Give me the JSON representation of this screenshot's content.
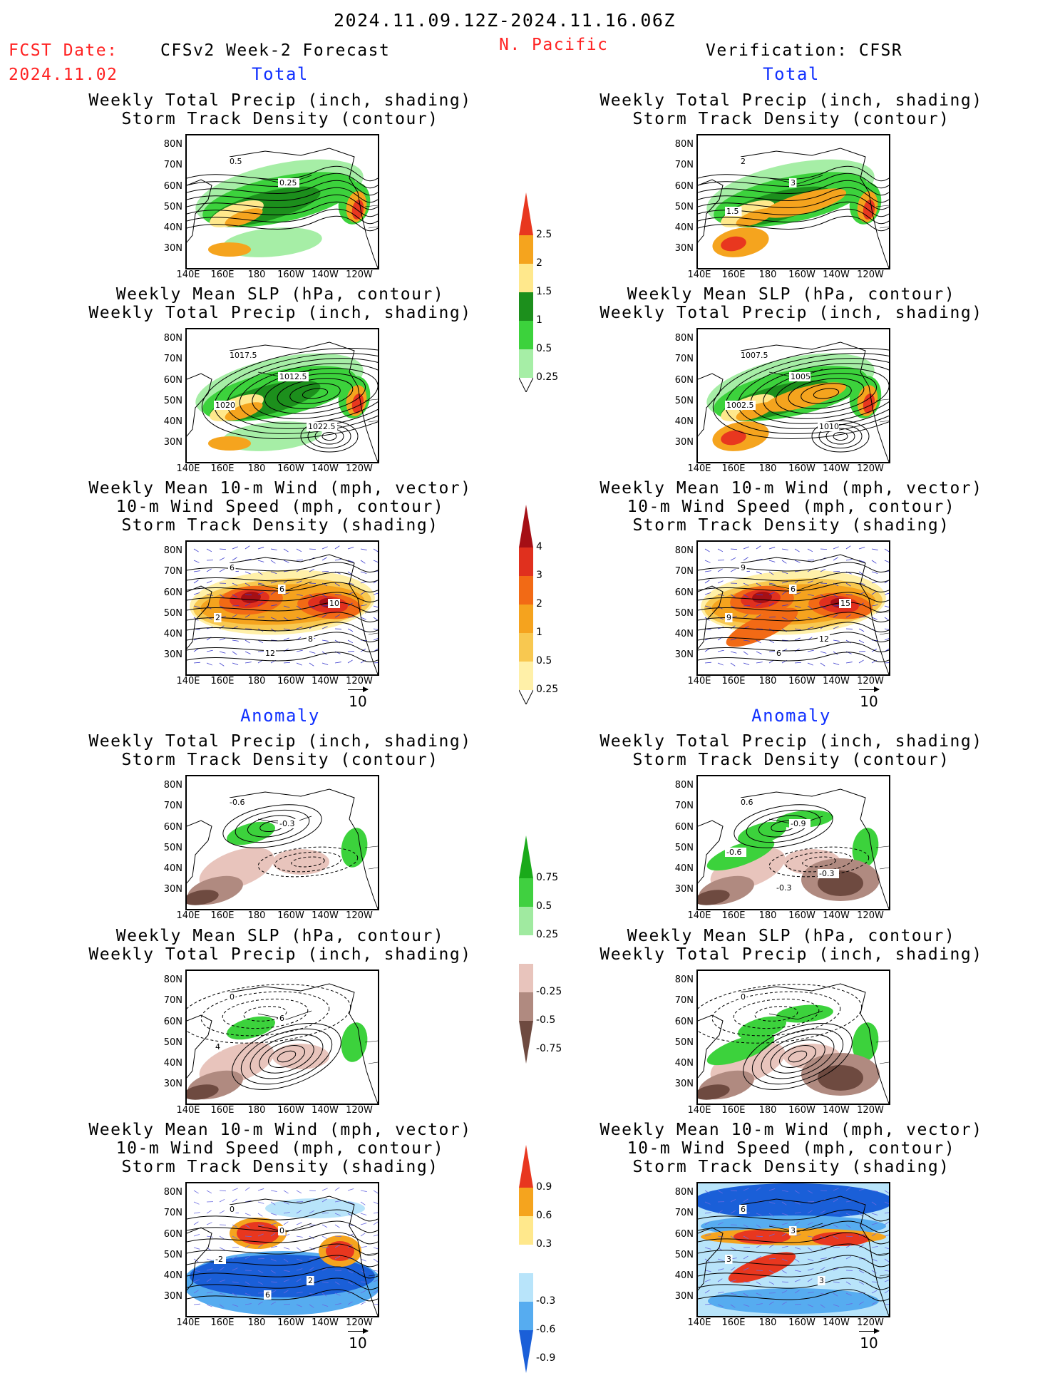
{
  "header": {
    "date_range": "2024.11.09.12Z-2024.11.16.06Z",
    "fcst_label": "FCST Date:",
    "fcst_date": "2024.11.02",
    "forecast_title": "CFSv2 Week-2 Forecast",
    "region": "N. Pacific",
    "verification_title": "Verification: CFSR"
  },
  "sections": {
    "total_left": "Total",
    "total_right": "Total",
    "anomaly_left": "Anomaly",
    "anomaly_right": "Anomaly"
  },
  "panel_titles": {
    "precip_storm": [
      "Weekly Total Precip (inch, shading)",
      "Storm Track Density (contour)"
    ],
    "slp_precip": [
      "Weekly Mean SLP (hPa, contour)",
      "Weekly Total Precip (inch, shading)"
    ],
    "wind_storm": [
      "Weekly Mean 10-m Wind (mph, vector)",
      "10-m Wind Speed (mph, contour)",
      "Storm Track Density (shading)"
    ]
  },
  "axes": {
    "lat_labels": [
      "80N",
      "70N",
      "60N",
      "50N",
      "40N",
      "30N"
    ],
    "lon_labels": [
      "140E",
      "160E",
      "180",
      "160W",
      "140W",
      "120W"
    ]
  },
  "contour_labels": {
    "fc_precip": [
      "0.5",
      "0.25"
    ],
    "ver_precip": [
      "2",
      "3",
      "1.5"
    ],
    "fc_slp": [
      "1017.5",
      "1012.5",
      "1020",
      "1022.5"
    ],
    "ver_slp": [
      "1007.5",
      "1005",
      "1002.5",
      "1010"
    ],
    "fc_wind": [
      "6",
      "6",
      "2",
      "8",
      "12",
      "10"
    ],
    "ver_wind": [
      "9",
      "6",
      "9",
      "12",
      "6",
      "15"
    ],
    "fc_precip_anom": [
      "-0.6",
      "-0.3"
    ],
    "ver_precip_anom": [
      "0.6",
      "-0.9",
      "-0.6",
      "-0.3",
      "-0.3"
    ],
    "fc_slp_anom": [
      "0",
      "6",
      "4"
    ],
    "ver_slp_anom": [
      "0"
    ],
    "fc_wind_anom": [
      "0",
      "0",
      "-2",
      "2",
      "6"
    ],
    "ver_wind_anom": [
      "6",
      "3",
      "3",
      "3"
    ]
  },
  "colorbars": {
    "precip_total": {
      "labels": [
        "2.5",
        "2",
        "1.5",
        "1",
        "0.5",
        "0.25"
      ],
      "colors": [
        "#e8371f",
        "#f5a41e",
        "#ffe88c",
        "#1c8f1c",
        "#3cd23c",
        "#a6eea6"
      ]
    },
    "storm_total": {
      "labels": [
        "4",
        "3",
        "2",
        "1",
        "0.5",
        "0.25"
      ],
      "colors": [
        "#a50f15",
        "#e0301e",
        "#f26a15",
        "#f5a31e",
        "#f8c850",
        "#fff0a8"
      ]
    },
    "precip_anom": {
      "labels": [
        "0.75",
        "0.5",
        "0.25",
        "-0.25",
        "-0.5",
        "-0.75"
      ],
      "colors": [
        "#1aaa1a",
        "#40d040",
        "#a0eaa0",
        "#ffffff",
        "#e8c4bc",
        "#b08a80",
        "#6e4a40"
      ]
    },
    "storm_anom": {
      "labels": [
        "0.9",
        "0.6",
        "0.3",
        "-0.3",
        "-0.6",
        "-0.9"
      ],
      "colors": [
        "#e8371f",
        "#f5a41e",
        "#ffe88c",
        "#ffffff",
        "#b8e4fa",
        "#56acf0",
        "#1a5fd8"
      ]
    }
  },
  "vector_reference": "10"
}
